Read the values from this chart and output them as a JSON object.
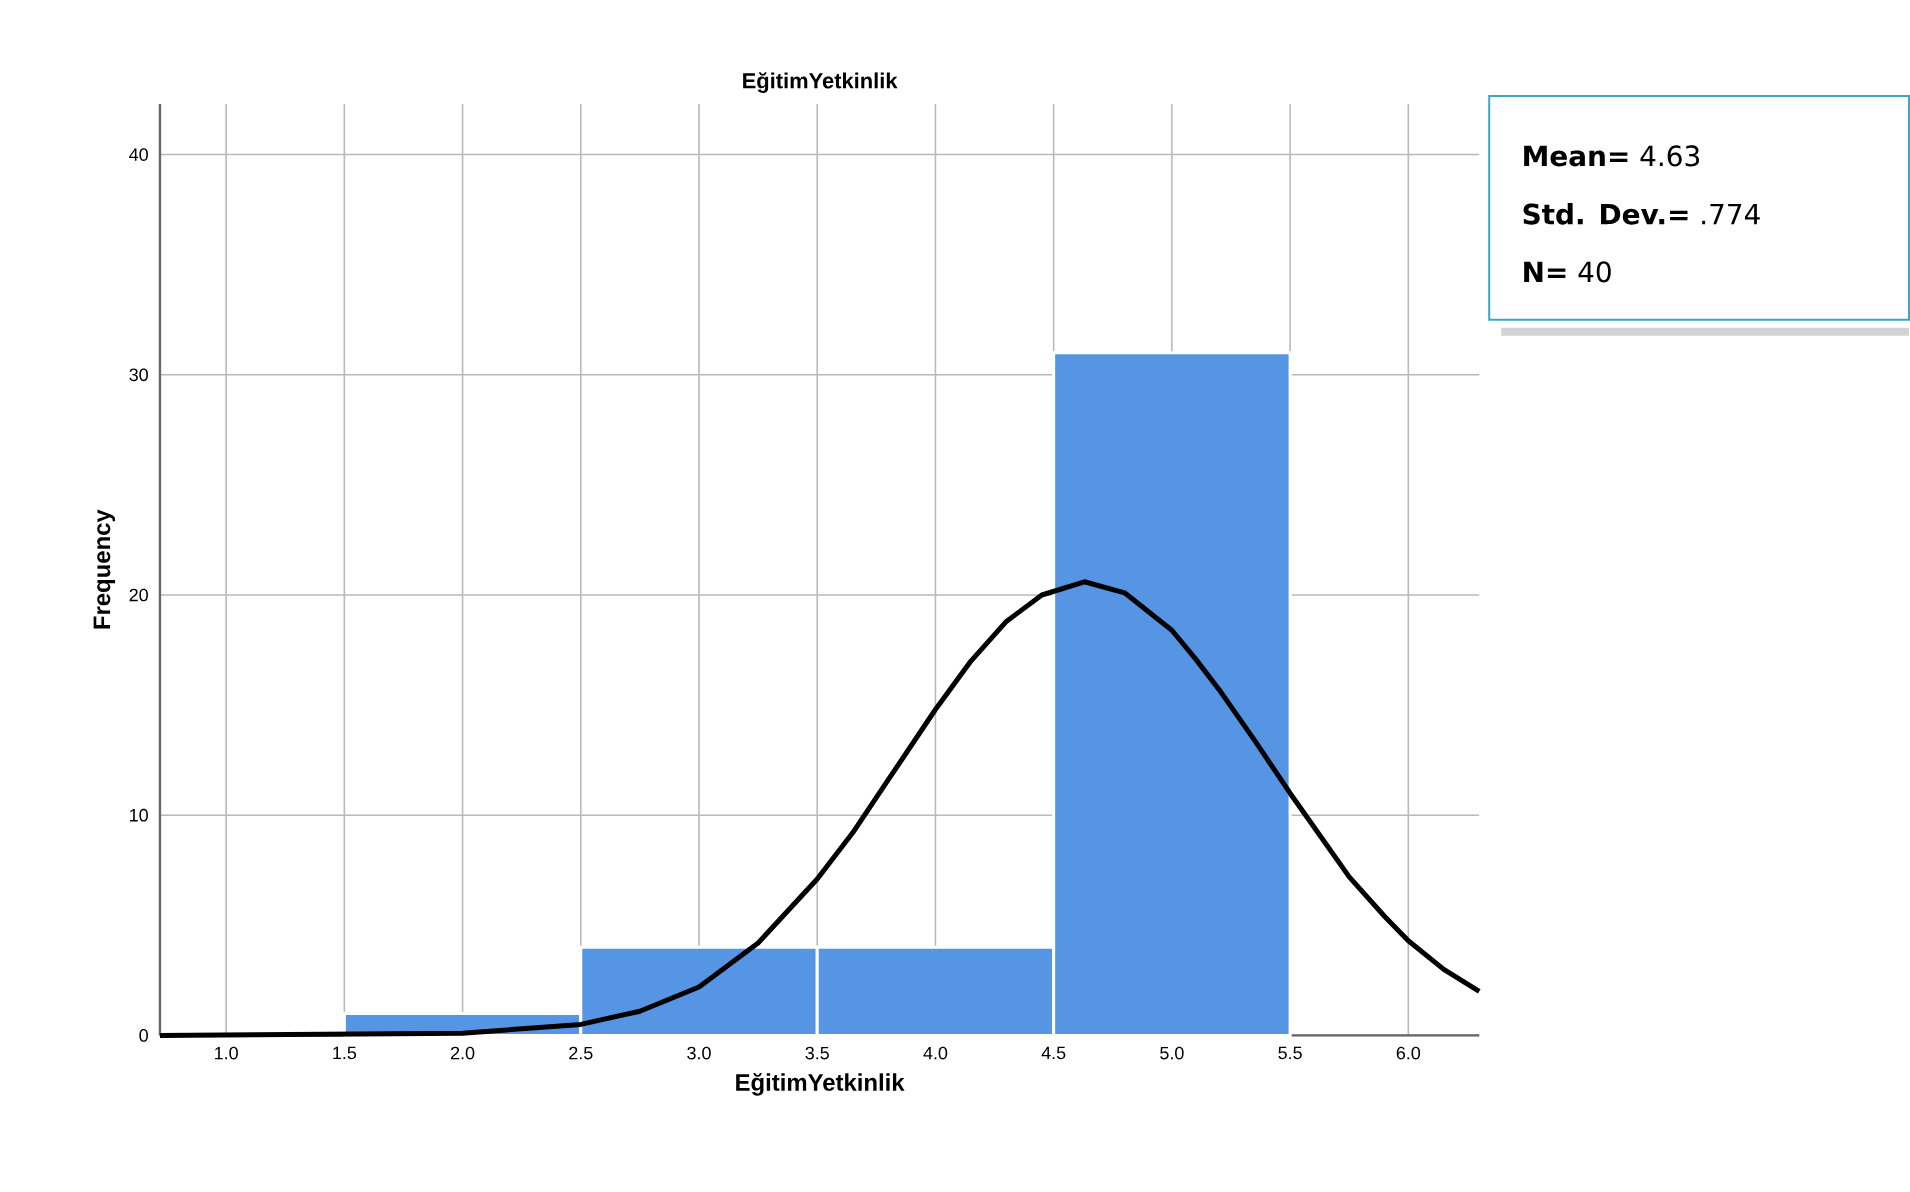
{
  "chart_data": {
    "type": "histogram",
    "title": "EğitimYetkinlik",
    "xlabel": "EğitimYetkinlik",
    "ylabel": "Frequency",
    "bins": [
      1.5,
      2.5,
      3.5,
      4.5,
      5.5
    ],
    "values": [
      1,
      4,
      4,
      31
    ],
    "color": "#5595e3",
    "series": [
      {
        "type": "line",
        "color": "#000000",
        "x": [
          0.72,
          2.0,
          2.5,
          2.75,
          3.0,
          3.25,
          3.5,
          3.65,
          3.8,
          4.0,
          4.15,
          4.3,
          4.45,
          4.63,
          4.8,
          5.0,
          5.1,
          5.2,
          5.35,
          5.5,
          5.75,
          5.9,
          6.0,
          6.15,
          6.3
        ],
        "values": [
          0,
          0.1,
          0.5,
          1.1,
          2.2,
          4.2,
          7.1,
          9.2,
          11.6,
          14.8,
          17.0,
          18.8,
          20.0,
          20.6,
          20.1,
          18.4,
          17.1,
          15.7,
          13.4,
          11.0,
          7.2,
          5.4,
          4.3,
          3.0,
          2.0
        ]
      }
    ],
    "xlim": [
      0.72,
      6.3
    ],
    "ylim": [
      0,
      42.3
    ],
    "xticks": [
      {
        "value": 1,
        "label": "1.0"
      },
      {
        "value": 1.5,
        "label": "1.5"
      },
      {
        "value": 2,
        "label": "2.0"
      },
      {
        "value": 2.5,
        "label": "2.5"
      },
      {
        "value": 3,
        "label": "3.0"
      },
      {
        "value": 3.5,
        "label": "3.5"
      },
      {
        "value": 4,
        "label": "4.0"
      },
      {
        "value": 4.5,
        "label": "4.5"
      },
      {
        "value": 5,
        "label": "5.0"
      },
      {
        "value": 5.5,
        "label": "5.5"
      },
      {
        "value": 6,
        "label": "6.0"
      }
    ],
    "yticks": [
      0,
      10,
      20,
      30,
      40
    ],
    "grid": true,
    "annotations": [
      "**Mean=** 4.63",
      "**Std. Dev.=** .774",
      "**N=** 40"
    ]
  }
}
